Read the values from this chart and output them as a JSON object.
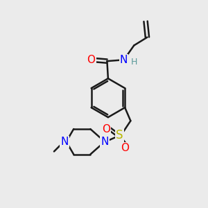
{
  "bg_color": "#ebebeb",
  "bond_color": "#1a1a1a",
  "atom_colors": {
    "O": "#ff0000",
    "N": "#0000ff",
    "S": "#b8b800",
    "H": "#5a9999",
    "C": "#1a1a1a"
  }
}
